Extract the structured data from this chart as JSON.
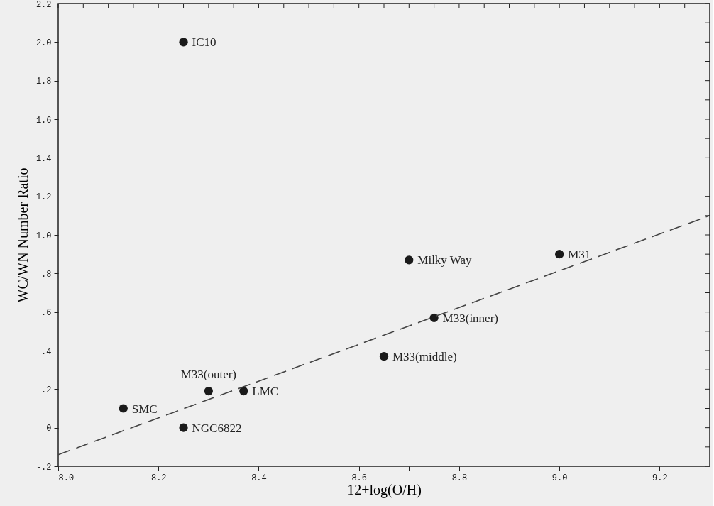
{
  "chart_data": {
    "type": "scatter",
    "xlabel": "12+log(O/H)",
    "ylabel": "WC/WN Number Ratio",
    "xlim": [
      8.0,
      9.3
    ],
    "ylim": [
      -0.2,
      2.2
    ],
    "xticks": [
      {
        "value": 8.0,
        "label": "8.0"
      },
      {
        "value": 8.05,
        "label": null
      },
      {
        "value": 8.1,
        "label": null
      },
      {
        "value": 8.15,
        "label": null
      },
      8.2,
      {
        "value": 8.25,
        "label": null
      },
      {
        "value": 8.3,
        "label": null
      },
      {
        "value": 8.35,
        "label": null
      },
      8.4,
      {
        "value": 8.45,
        "label": null
      },
      {
        "value": 8.5,
        "label": null
      },
      {
        "value": 8.55,
        "label": null
      },
      8.6,
      {
        "value": 8.65,
        "label": null
      },
      {
        "value": 8.7,
        "label": null
      },
      {
        "value": 8.75,
        "label": null
      },
      8.8,
      {
        "value": 8.85,
        "label": null
      },
      {
        "value": 8.9,
        "label": null
      },
      {
        "value": 8.95,
        "label": null
      },
      {
        "value": 9.0,
        "label": "9.0"
      },
      {
        "value": 9.05,
        "label": null
      },
      {
        "value": 9.1,
        "label": null
      },
      {
        "value": 9.15,
        "label": null
      },
      9.2,
      {
        "value": 9.25,
        "label": null
      }
    ],
    "yticks": [
      {
        "value": -0.2,
        "label": "-.2"
      },
      {
        "value": -0.1,
        "label": null
      },
      0,
      {
        "value": 0.1,
        "label": null
      },
      {
        "value": 0.2,
        "label": ".2"
      },
      {
        "value": 0.3,
        "label": null
      },
      {
        "value": 0.4,
        "label": ".4"
      },
      {
        "value": 0.5,
        "label": null
      },
      {
        "value": 0.6,
        "label": ".6"
      },
      {
        "value": 0.7,
        "label": null
      },
      {
        "value": 0.8,
        "label": ".8"
      },
      {
        "value": 0.9,
        "label": null
      },
      {
        "value": 1.0,
        "label": "1.0"
      },
      {
        "value": 1.1,
        "label": null
      },
      1.2,
      {
        "value": 1.3,
        "label": null
      },
      1.4,
      {
        "value": 1.5,
        "label": null
      },
      1.6,
      {
        "value": 1.7,
        "label": null
      },
      1.8,
      {
        "value": 1.9,
        "label": null
      },
      {
        "value": 2.0,
        "label": "2.0"
      },
      {
        "value": 2.1,
        "label": null
      },
      2.2
    ],
    "grid": false,
    "marker": "circle",
    "series": [
      {
        "color": "#1a1a1a",
        "x": [
          8.25,
          8.13,
          8.25,
          8.3,
          8.37,
          8.65,
          8.7,
          8.75,
          9.0
        ],
        "values": [
          2.0,
          0.1,
          0.0,
          0.19,
          0.19,
          0.37,
          0.87,
          0.57,
          0.9
        ]
      },
      {
        "type": "line",
        "color": "#444444",
        "line_style": "dashed",
        "marker": "none",
        "x": [
          8.0,
          9.3
        ],
        "values": [
          -0.14,
          1.1
        ]
      }
    ],
    "annotations": [
      {
        "text": "IC10",
        "x": 8.25,
        "y": 2.0
      },
      {
        "text": "SMC",
        "x": 8.13,
        "y": 0.1
      },
      {
        "text": "NGC6822",
        "x": 8.25,
        "y": 0.0
      },
      {
        "text": "M33(outer)",
        "x": 8.3,
        "y": 0.19
      },
      {
        "text": "LMC",
        "x": 8.37,
        "y": 0.19
      },
      {
        "text": "M33(middle)",
        "x": 8.65,
        "y": 0.37
      },
      {
        "text": "Milky Way",
        "x": 8.7,
        "y": 0.87
      },
      {
        "text": "M33(inner)",
        "x": 8.75,
        "y": 0.57
      },
      {
        "text": "M31",
        "x": 9.0,
        "y": 0.9
      }
    ]
  }
}
